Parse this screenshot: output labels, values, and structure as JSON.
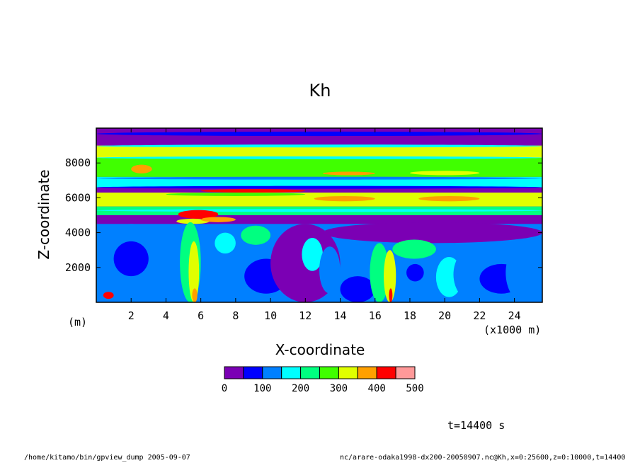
{
  "chart_data": {
    "type": "heatmap",
    "title": "Kh",
    "xlabel": "X-coordinate",
    "ylabel": "Z-coordinate",
    "x_unit": "(x1000 m)",
    "y_unit": "(m)",
    "xlim": [
      0,
      25.6
    ],
    "ylim": [
      0,
      10000
    ],
    "x_ticks": [
      2,
      4,
      6,
      8,
      10,
      12,
      14,
      16,
      18,
      20,
      22,
      24
    ],
    "y_ticks": [
      2000,
      4000,
      6000,
      8000
    ],
    "colorbar": {
      "levels": [
        0,
        50,
        100,
        150,
        200,
        250,
        300,
        350,
        400,
        450,
        500
      ],
      "labels": [
        "0",
        "100",
        "200",
        "300",
        "400",
        "500"
      ],
      "colors": [
        "#7b00b4",
        "#0000ff",
        "#0080ff",
        "#00ffff",
        "#00ff80",
        "#40ff00",
        "#e0ff00",
        "#ffa000",
        "#ff0000",
        "#ff9999"
      ]
    },
    "bands": [
      {
        "z": [
          9000,
          9800
        ],
        "level": 0
      },
      {
        "z": [
          8300,
          9000
        ],
        "level": 6
      },
      {
        "z": [
          7200,
          8300
        ],
        "level": 5
      },
      {
        "z": [
          6600,
          7200
        ],
        "level": 3
      },
      {
        "z": [
          6300,
          6600
        ],
        "level": 0
      },
      {
        "z": [
          5500,
          6300
        ],
        "level": 6
      },
      {
        "z": [
          5000,
          5500
        ],
        "level": 4
      },
      {
        "z": [
          4500,
          5000
        ],
        "level": 0
      },
      {
        "z": [
          0,
          4500
        ],
        "level": 2
      }
    ]
  },
  "annotations": {
    "time": "t=14400 s",
    "footer_left": "/home/kitamo/bin/gpview_dump  2005-09-07",
    "footer_right": "nc/arare-odaka1998-dx200-20050907.nc@Kh,x=0:25600,z=0:10000,t=14400"
  }
}
